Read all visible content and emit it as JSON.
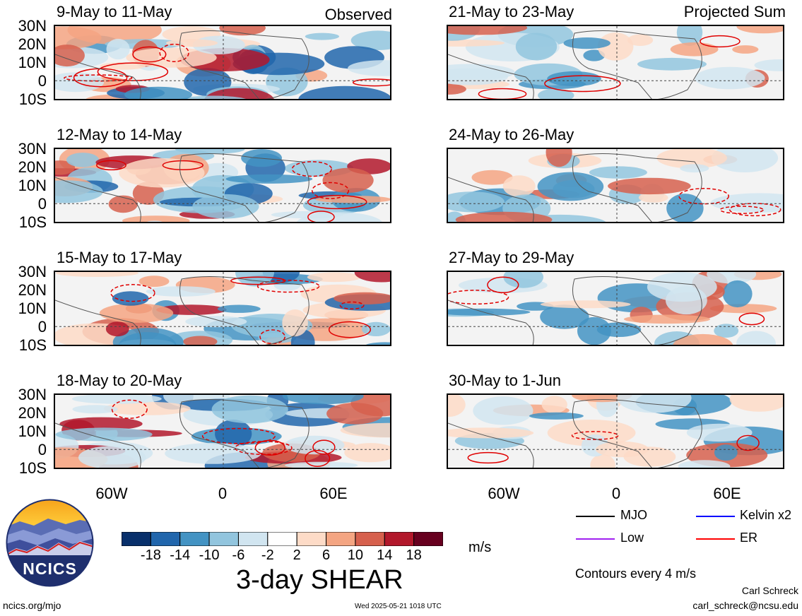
{
  "header": {
    "observed_label": "Observed",
    "projected_label": "Projected Sum"
  },
  "panels_left": [
    {
      "title": "9-May to 11-May"
    },
    {
      "title": "12-May to 14-May"
    },
    {
      "title": "15-May to 17-May"
    },
    {
      "title": "18-May to 20-May"
    }
  ],
  "panels_right": [
    {
      "title": "21-May to 23-May"
    },
    {
      "title": "24-May to 26-May"
    },
    {
      "title": "27-May to 29-May"
    },
    {
      "title": "30-May to 1-Jun"
    }
  ],
  "lat_labels": [
    "30N",
    "20N",
    "10N",
    "0",
    "10S"
  ],
  "lon_labels": [
    "60W",
    "0",
    "60E"
  ],
  "colorbar": {
    "ticks": [
      "-18",
      "-14",
      "-10",
      "-6",
      "-2",
      "2",
      "6",
      "10",
      "14",
      "18"
    ],
    "colors": [
      "#08306b",
      "#2166ac",
      "#4393c3",
      "#92c5de",
      "#d1e5f0",
      "#ffffff",
      "#fddbc7",
      "#f4a582",
      "#d6604d",
      "#b2182b",
      "#67001f"
    ],
    "units": "m/s",
    "title": "3-day SHEAR"
  },
  "legend": {
    "items": [
      {
        "label": "MJO",
        "color": "#000000"
      },
      {
        "label": "Kelvin x2",
        "color": "#0000ff"
      },
      {
        "label": "Low",
        "color": "#a020f0"
      },
      {
        "label": "ER",
        "color": "#ff0000"
      }
    ],
    "contour_note": "Contours every 4 m/s"
  },
  "footer": {
    "logo_text": "NCICS",
    "site": "ncics.org/mjo",
    "timestamp": "Wed 2025-05-21 1018 UTC",
    "author": "Carl Schreck",
    "email": "carl_schreck@ncsu.edu"
  }
}
